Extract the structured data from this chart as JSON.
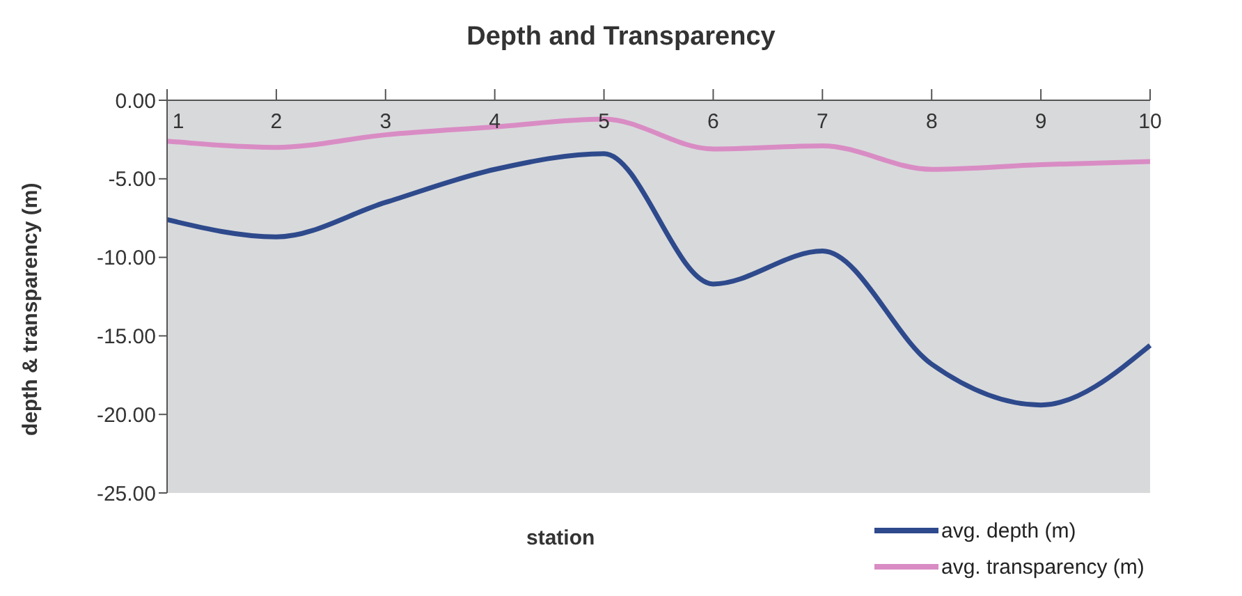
{
  "chart_data": {
    "type": "line",
    "title": "Depth and Transparency",
    "xlabel": "station",
    "ylabel": "depth & transparency (m)",
    "categories": [
      "1",
      "2",
      "3",
      "4",
      "5",
      "6",
      "7",
      "8",
      "9",
      "10"
    ],
    "series": [
      {
        "name": "avg. depth (m)",
        "color": "#2e4a8c",
        "values": [
          -7.6,
          -8.7,
          -6.5,
          -4.4,
          -3.4,
          -11.7,
          -9.6,
          -16.8,
          -19.4,
          -15.6
        ]
      },
      {
        "name": "avg. transparency (m)",
        "color": "#d98cc4",
        "values": [
          -2.6,
          -3.0,
          -2.2,
          -1.7,
          -1.2,
          -3.1,
          -2.9,
          -4.4,
          -4.1,
          -3.9
        ]
      }
    ],
    "ylim": [
      -25,
      0
    ],
    "yticks": [
      {
        "value": -25,
        "label": "-25.00"
      },
      {
        "value": -20,
        "label": "-20.00"
      },
      {
        "value": -15,
        "label": "-15.00"
      },
      {
        "value": -10,
        "label": "-10.00"
      },
      {
        "value": -5,
        "label": "-5.00"
      },
      {
        "value": 0,
        "label": "0.00"
      }
    ],
    "grid": false,
    "legend": "bottom right",
    "marker": "none",
    "line_style": "solid"
  }
}
